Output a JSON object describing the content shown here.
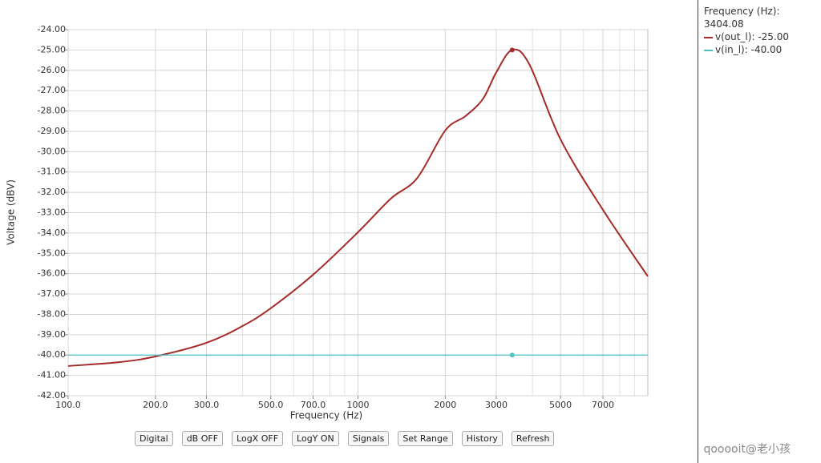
{
  "chart_data": {
    "type": "line",
    "x_label": "Frequency (Hz)",
    "y_label": "Voltage (dBV)",
    "log_x": true,
    "grid": true,
    "xlim": [
      100,
      10000
    ],
    "xticks": [
      {
        "value": 100,
        "label": "100.0"
      },
      {
        "value": 200,
        "label": "200.0"
      },
      {
        "value": 300,
        "label": "300.0"
      },
      {
        "value": 500,
        "label": "500.0"
      },
      {
        "value": 700,
        "label": "700.0"
      },
      1000,
      2000,
      3000,
      5000,
      7000
    ],
    "x_minor_grid": [
      400,
      600,
      800,
      900,
      4000,
      6000,
      8000,
      9000
    ],
    "ylim": [
      -42,
      -24
    ],
    "yticks": [
      {
        "value": -24,
        "label": "-24.00"
      },
      {
        "value": -25,
        "label": "-25.00"
      },
      {
        "value": -26,
        "label": "-26.00"
      },
      {
        "value": -27,
        "label": "-27.00"
      },
      {
        "value": -28,
        "label": "-28.00"
      },
      {
        "value": -29,
        "label": "-29.00"
      },
      {
        "value": -30,
        "label": "-30.00"
      },
      {
        "value": -31,
        "label": "-31.00"
      },
      {
        "value": -32,
        "label": "-32.00"
      },
      {
        "value": -33,
        "label": "-33.00"
      },
      {
        "value": -34,
        "label": "-34.00"
      },
      {
        "value": -35,
        "label": "-35.00"
      },
      {
        "value": -36,
        "label": "-36.00"
      },
      {
        "value": -37,
        "label": "-37.00"
      },
      {
        "value": -38,
        "label": "-38.00"
      },
      {
        "value": -39,
        "label": "-39.00"
      },
      {
        "value": -40,
        "label": "-40.00"
      },
      {
        "value": -41,
        "label": "-41.00"
      },
      {
        "value": -42,
        "label": "-42.00"
      }
    ],
    "series": [
      {
        "name": "v(out_l):",
        "color": "#a52a2a",
        "x": [
          100,
          150,
          200,
          300,
          400,
          500,
          700,
          1000,
          1300,
          1600,
          2000,
          2350,
          2700,
          3000,
          3404.08,
          3900,
          5000,
          7000,
          10000
        ],
        "values": [
          -40.54,
          -40.35,
          -40.07,
          -39.4,
          -38.57,
          -37.7,
          -36.05,
          -33.96,
          -32.3,
          -31.3,
          -28.96,
          -28.25,
          -27.4,
          -26.1,
          -25.0,
          -25.7,
          -29.4,
          -32.86,
          -36.13
        ]
      },
      {
        "name": "v(in_l):",
        "color": "#4fc1c1",
        "x": [
          100,
          10000
        ],
        "values": [
          -40,
          -40
        ]
      }
    ],
    "cursor": {
      "label": "Frequency (Hz):",
      "x": 3404.08,
      "values": [
        -25,
        -40
      ],
      "value_labels": [
        "-25.00",
        "-40.00"
      ]
    }
  },
  "buttons": [
    "Digital",
    "dB OFF",
    "LogX OFF",
    "LogY ON",
    "Signals",
    "Set Range",
    "History",
    "Refresh"
  ],
  "watermark": "qooooit@老小孩"
}
